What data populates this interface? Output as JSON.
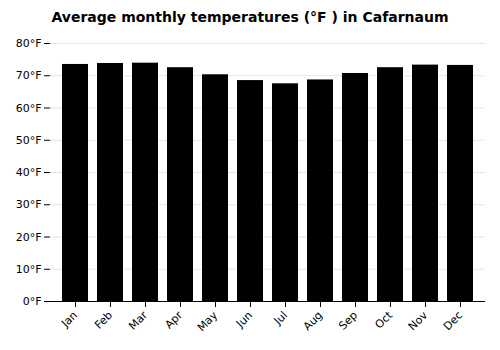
{
  "chart_data": {
    "type": "bar",
    "title": "Average monthly temperatures (°F ) in Cafarnaum",
    "categories": [
      "Jan",
      "Feb",
      "Mar",
      "Apr",
      "May",
      "Jun",
      "Jul",
      "Aug",
      "Sep",
      "Oct",
      "Nov",
      "Dec"
    ],
    "values": [
      73.5,
      73.8,
      73.9,
      72.5,
      70.3,
      68.5,
      67.5,
      68.7,
      70.7,
      72.5,
      73.3,
      73.2
    ],
    "ylim": [
      0,
      80
    ],
    "yticks": [
      {
        "value": 0,
        "label": "0°F"
      },
      {
        "value": 10,
        "label": "10°F"
      },
      {
        "value": 20,
        "label": "20°F"
      },
      {
        "value": 30,
        "label": "30°F"
      },
      {
        "value": 40,
        "label": "40°F"
      },
      {
        "value": 50,
        "label": "50°F"
      },
      {
        "value": 60,
        "label": "60°F"
      },
      {
        "value": 70,
        "label": "70°F"
      },
      {
        "value": 80,
        "label": "80°F"
      }
    ],
    "grid": true
  }
}
